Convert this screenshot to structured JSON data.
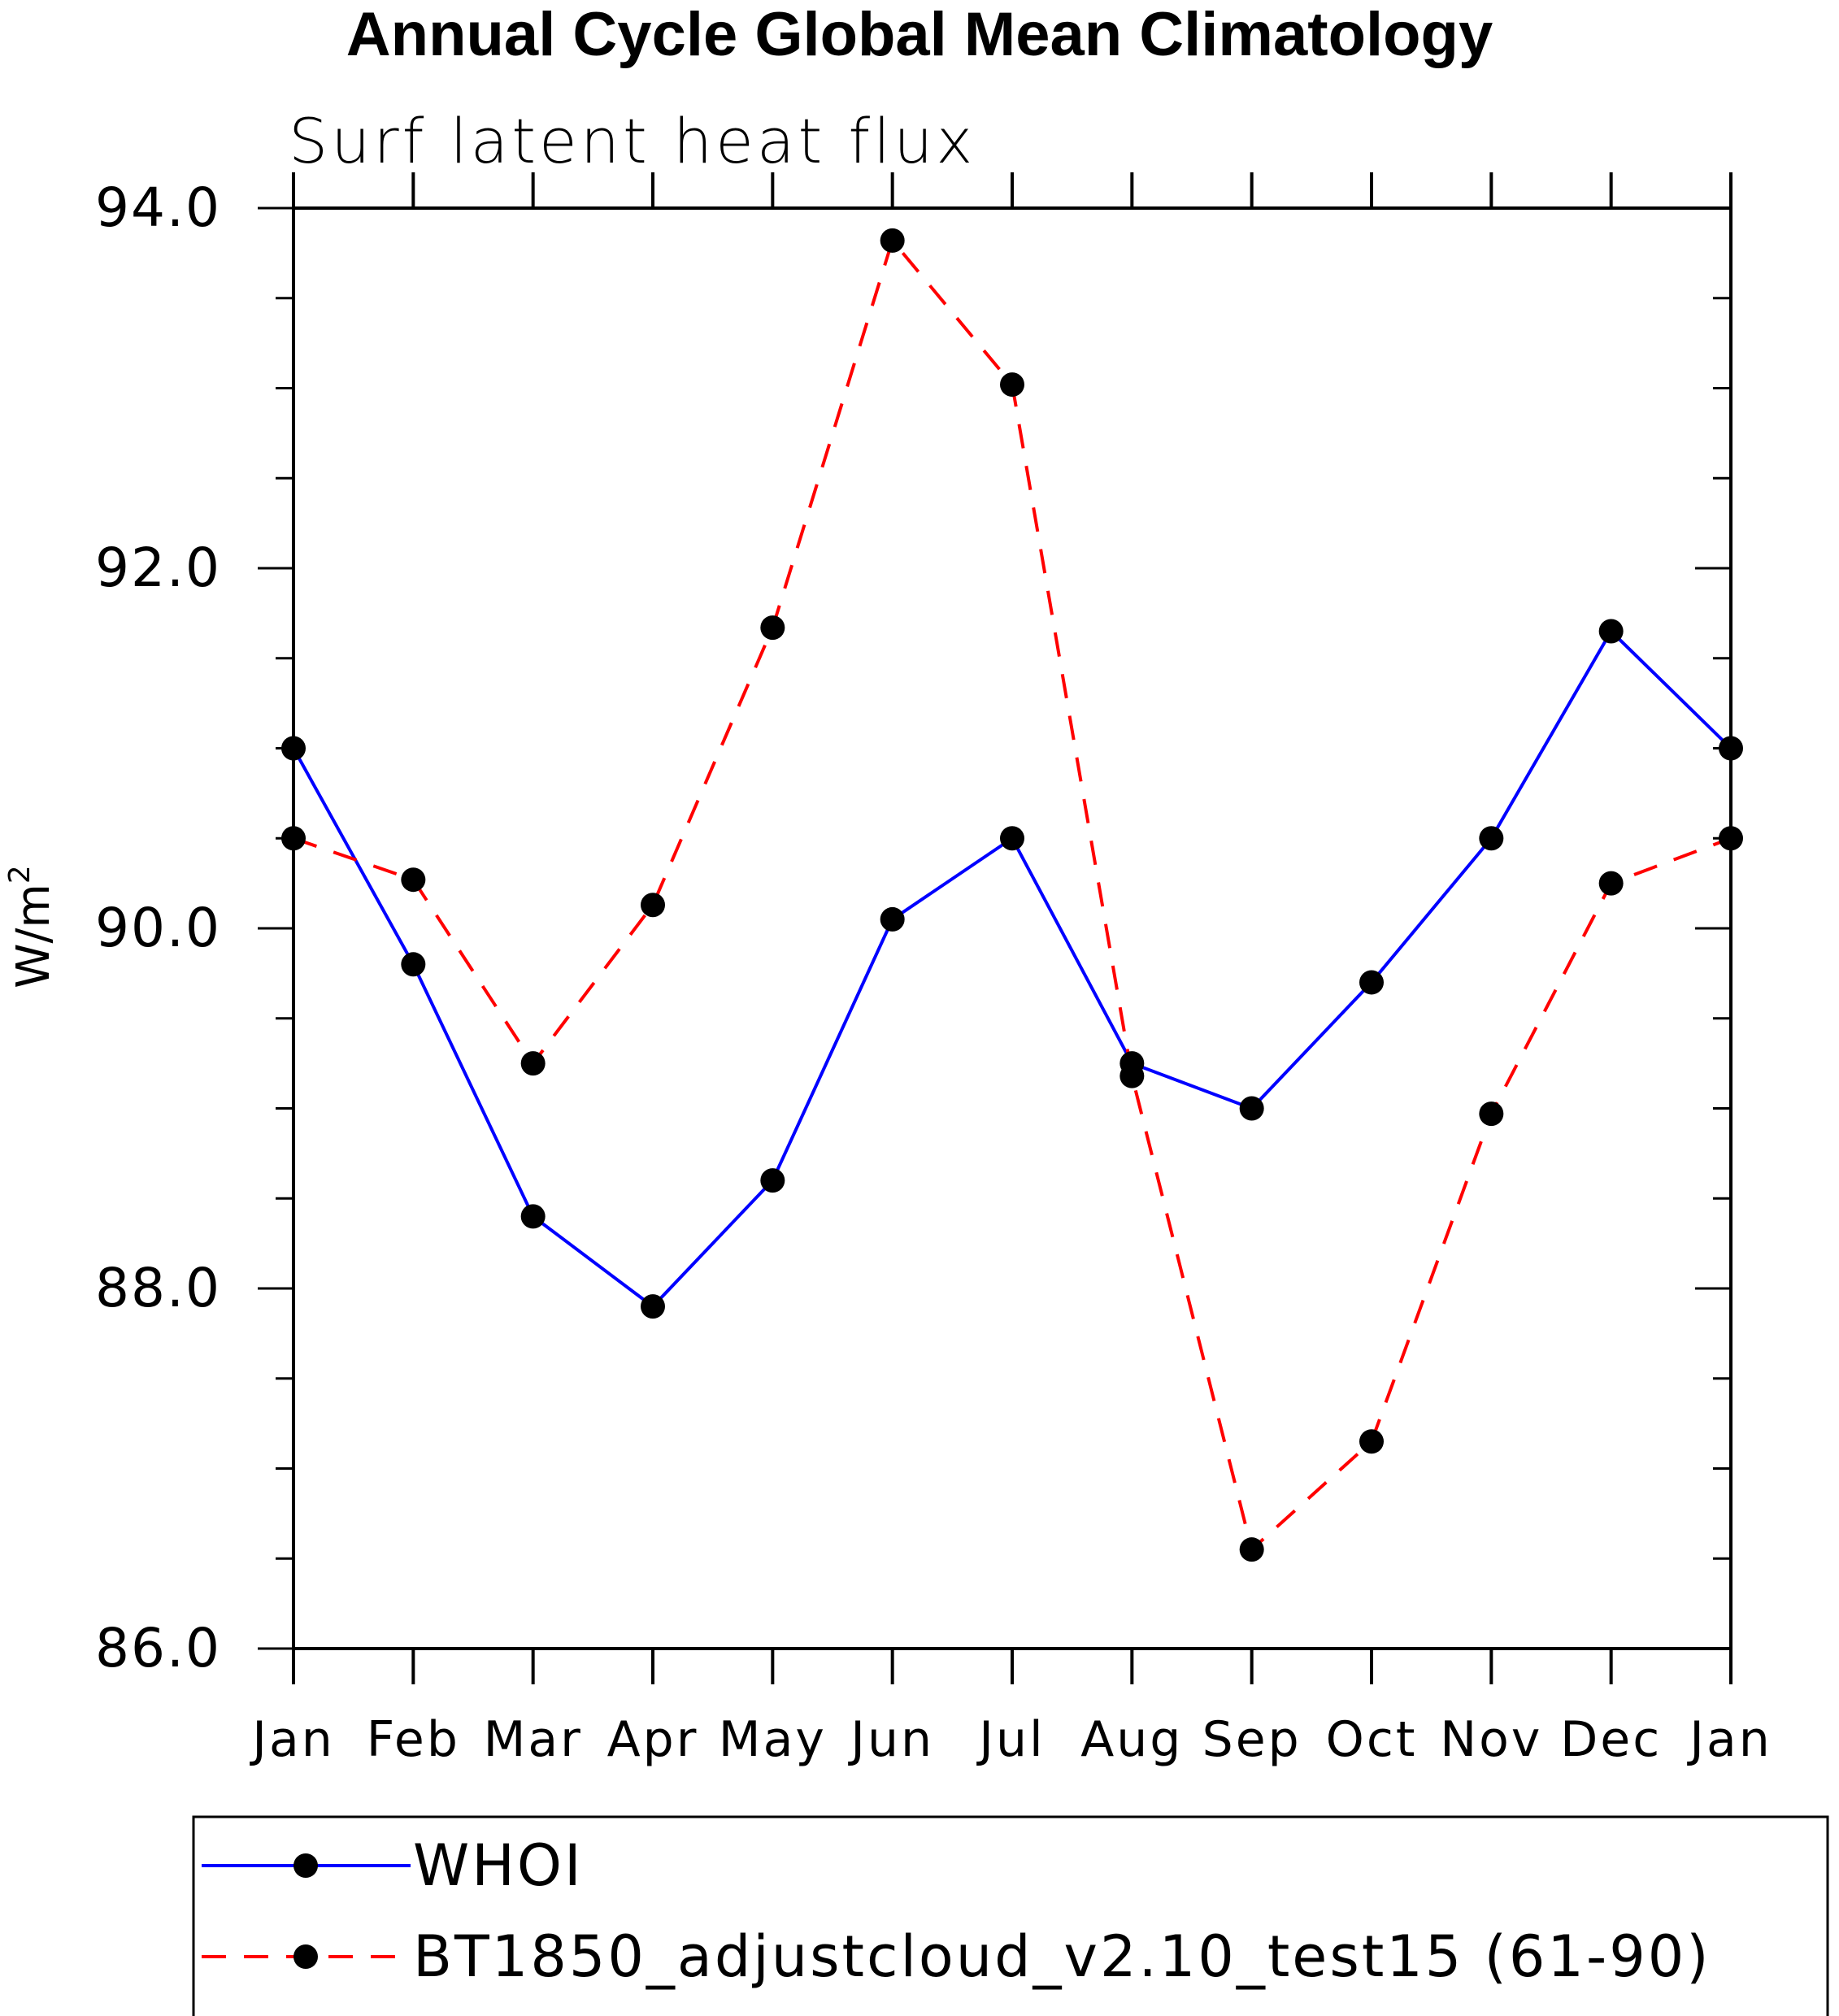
{
  "chart_data": {
    "type": "line",
    "title": "Annual Cycle Global Mean Climatology",
    "subtitle": "Surf latent heat flux",
    "xlabel": "",
    "ylabel": "W/m",
    "ylabel_sup": "2",
    "categories": [
      "Jan",
      "Feb",
      "Mar",
      "Apr",
      "May",
      "Jun",
      "Jul",
      "Aug",
      "Sep",
      "Oct",
      "Nov",
      "Dec",
      "Jan"
    ],
    "ylim": [
      86.0,
      94.0
    ],
    "yticks": [
      "86.0",
      "88.0",
      "90.0",
      "92.0",
      "94.0"
    ],
    "grid": false,
    "legend_position": "bottom",
    "series": [
      {
        "name": "WHOI",
        "color": "#0000ff",
        "dash": "solid",
        "marker": "filled-circle",
        "values": [
          91.0,
          89.8,
          88.4,
          87.9,
          88.6,
          90.05,
          90.5,
          89.25,
          89.0,
          89.7,
          90.5,
          91.65,
          91.0
        ]
      },
      {
        "name": "BT1850_adjustcloud_v2.10_test15 (61-90)",
        "color": "#ff0000",
        "dash": "dashed",
        "marker": "filled-circle",
        "values": [
          90.5,
          90.27,
          89.25,
          90.13,
          91.67,
          93.82,
          93.02,
          89.18,
          86.55,
          87.15,
          88.97,
          90.25,
          90.5
        ]
      }
    ]
  }
}
